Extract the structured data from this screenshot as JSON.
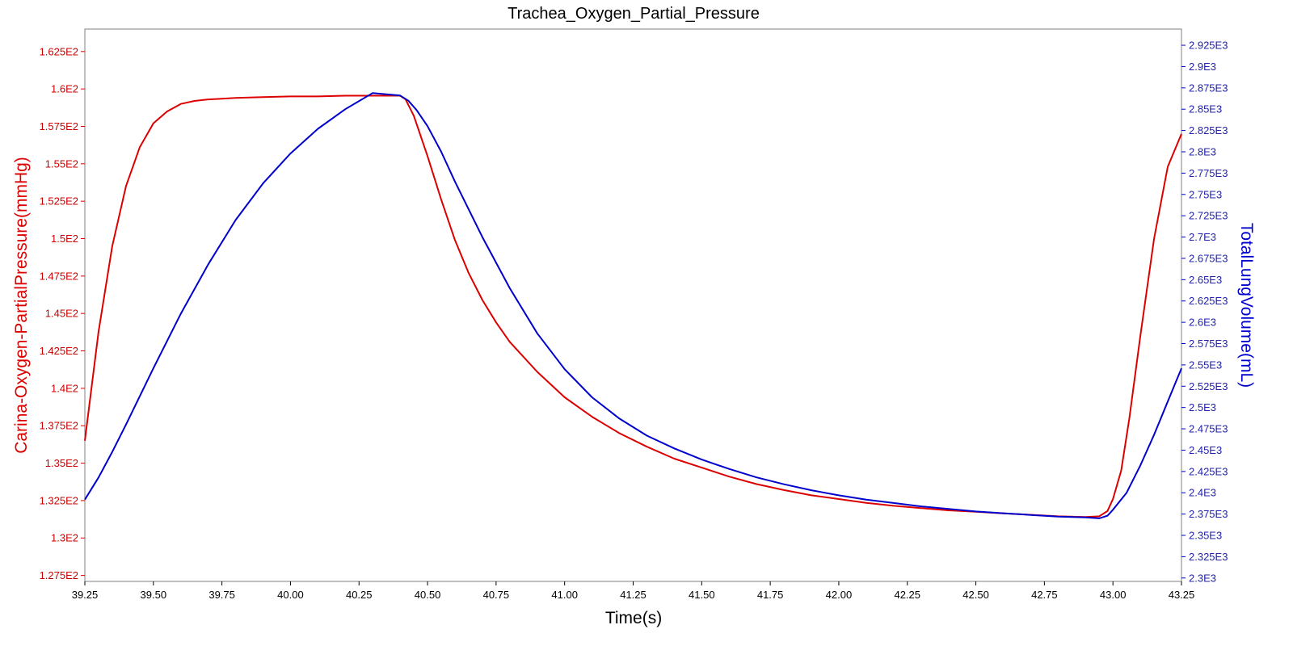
{
  "chart_data": {
    "type": "line",
    "title": "Trachea_Oxygen_Partial_Pressure",
    "xlabel": "Time(s)",
    "ylabel_left": "Carina-Oxygen-PartialPressure(mmHg)",
    "ylabel_right": "TotalLungVolume(mL)",
    "xlim": [
      39.25,
      43.25
    ],
    "ylim_left": [
      127.1,
      164.0
    ],
    "ylim_right": [
      2296,
      2944
    ],
    "x_ticks": [
      "39.25",
      "39.50",
      "39.75",
      "40.00",
      "40.25",
      "40.50",
      "40.75",
      "41.00",
      "41.25",
      "41.50",
      "41.75",
      "42.00",
      "42.25",
      "42.50",
      "42.75",
      "43.00",
      "43.25"
    ],
    "x_tick_values": [
      39.25,
      39.5,
      39.75,
      40.0,
      40.25,
      40.5,
      40.75,
      41.0,
      41.25,
      41.5,
      41.75,
      42.0,
      42.25,
      42.5,
      42.75,
      43.0,
      43.25
    ],
    "y_left_ticks": [
      "1.275E2",
      "1.3E2",
      "1.325E2",
      "1.35E2",
      "1.375E2",
      "1.4E2",
      "1.425E2",
      "1.45E2",
      "1.475E2",
      "1.5E2",
      "1.525E2",
      "1.55E2",
      "1.575E2",
      "1.6E2",
      "1.625E2"
    ],
    "y_left_tick_values": [
      127.5,
      130,
      132.5,
      135,
      137.5,
      140,
      142.5,
      145,
      147.5,
      150,
      152.5,
      155,
      157.5,
      160,
      162.5
    ],
    "y_right_ticks": [
      "2.3E3",
      "2.325E3",
      "2.35E3",
      "2.375E3",
      "2.4E3",
      "2.425E3",
      "2.45E3",
      "2.475E3",
      "2.5E3",
      "2.525E3",
      "2.55E3",
      "2.575E3",
      "2.6E3",
      "2.625E3",
      "2.65E3",
      "2.675E3",
      "2.7E3",
      "2.725E3",
      "2.75E3",
      "2.775E3",
      "2.8E3",
      "2.825E3",
      "2.85E3",
      "2.875E3",
      "2.9E3",
      "2.925E3"
    ],
    "y_right_tick_values": [
      2300,
      2325,
      2350,
      2375,
      2400,
      2425,
      2450,
      2475,
      2500,
      2525,
      2550,
      2575,
      2600,
      2625,
      2650,
      2675,
      2700,
      2725,
      2750,
      2775,
      2800,
      2825,
      2850,
      2875,
      2900,
      2925
    ],
    "series": [
      {
        "name": "Carina-Oxygen-PartialPressure(mmHg)",
        "axis": "left",
        "color": "#dd0000",
        "x": [
          39.25,
          39.3,
          39.35,
          39.4,
          39.45,
          39.5,
          39.55,
          39.6,
          39.65,
          39.7,
          39.75,
          39.8,
          39.9,
          40.0,
          40.1,
          40.2,
          40.3,
          40.4,
          40.42,
          40.45,
          40.5,
          40.55,
          40.6,
          40.65,
          40.7,
          40.75,
          40.8,
          40.9,
          41.0,
          41.1,
          41.2,
          41.3,
          41.4,
          41.5,
          41.6,
          41.7,
          41.8,
          41.9,
          42.0,
          42.1,
          42.2,
          42.3,
          42.4,
          42.5,
          42.6,
          42.7,
          42.8,
          42.9,
          42.95,
          42.98,
          43.0,
          43.03,
          43.06,
          43.1,
          43.15,
          43.2,
          43.25
        ],
        "y": [
          136.5,
          143.8,
          149.5,
          153.5,
          156.1,
          157.7,
          158.5,
          159.0,
          159.2,
          159.3,
          159.35,
          159.4,
          159.45,
          159.5,
          159.5,
          159.55,
          159.55,
          159.55,
          159.3,
          158.2,
          155.5,
          152.6,
          149.9,
          147.7,
          145.9,
          144.4,
          143.1,
          141.1,
          139.4,
          138.1,
          137.0,
          136.1,
          135.3,
          134.7,
          134.1,
          133.6,
          133.2,
          132.85,
          132.6,
          132.35,
          132.15,
          132.0,
          131.85,
          131.75,
          131.65,
          131.55,
          131.45,
          131.4,
          131.45,
          131.8,
          132.6,
          134.5,
          138.0,
          143.5,
          150.0,
          154.8,
          157.0
        ]
      },
      {
        "name": "TotalLungVolume(mL)",
        "axis": "right",
        "color": "#0000cc",
        "x": [
          39.25,
          39.3,
          39.35,
          39.4,
          39.5,
          39.6,
          39.7,
          39.8,
          39.9,
          40.0,
          40.1,
          40.2,
          40.3,
          40.4,
          40.43,
          40.46,
          40.5,
          40.55,
          40.6,
          40.7,
          40.8,
          40.9,
          41.0,
          41.1,
          41.2,
          41.3,
          41.4,
          41.5,
          41.6,
          41.7,
          41.8,
          41.9,
          42.0,
          42.1,
          42.2,
          42.3,
          42.4,
          42.5,
          42.6,
          42.7,
          42.8,
          42.9,
          42.95,
          42.98,
          43.0,
          43.05,
          43.1,
          43.15,
          43.2,
          43.25
        ],
        "y": [
          2392,
          2418,
          2448,
          2480,
          2546,
          2610,
          2668,
          2720,
          2763,
          2798,
          2827,
          2850,
          2869,
          2866,
          2860,
          2849,
          2830,
          2800,
          2765,
          2700,
          2640,
          2587,
          2545,
          2512,
          2487,
          2467,
          2452,
          2439,
          2428,
          2418,
          2410,
          2403,
          2397,
          2392,
          2388,
          2384,
          2381,
          2378,
          2376,
          2374,
          2372,
          2371,
          2370,
          2373,
          2380,
          2400,
          2432,
          2468,
          2507,
          2546
        ]
      }
    ]
  }
}
